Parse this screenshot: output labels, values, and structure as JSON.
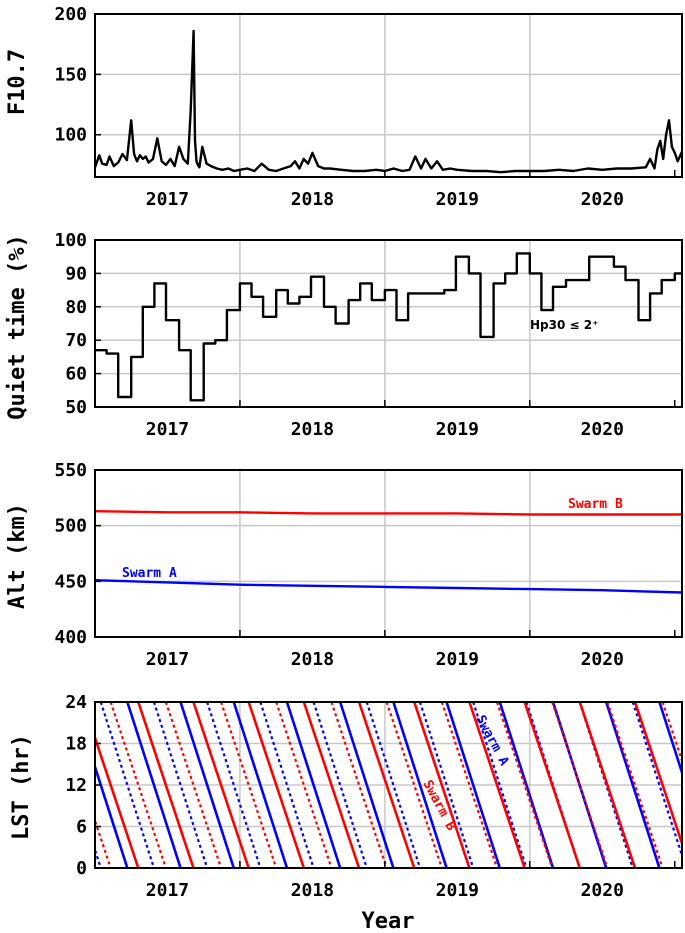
{
  "xlabel": "Year",
  "year_ticks": [
    "2017",
    "2018",
    "2019",
    "2020"
  ],
  "colors": {
    "swarm_a": "#0000ff",
    "swarm_b": "#ff0000",
    "black": "#000000",
    "grid": "#c8c8c8"
  },
  "chart_data": [
    {
      "id": "f107",
      "type": "line",
      "ylabel": "F10.7",
      "xlim": [
        2016.5,
        2020.55
      ],
      "ylim": [
        65,
        200
      ],
      "yticks": [
        100,
        150,
        200
      ],
      "grid": true,
      "series": [
        {
          "color": "#000000",
          "x": [
            2016.5,
            2016.53,
            2016.55,
            2016.58,
            2016.6,
            2016.63,
            2016.66,
            2016.69,
            2016.72,
            2016.75,
            2016.77,
            2016.79,
            2016.81,
            2016.83,
            2016.85,
            2016.87,
            2016.9,
            2016.93,
            2016.96,
            2016.99,
            2017.02,
            2017.05,
            2017.08,
            2017.11,
            2017.14,
            2017.16,
            2017.18,
            2017.19,
            2017.2,
            2017.21,
            2017.22,
            2017.24,
            2017.27,
            2017.3,
            2017.34,
            2017.38,
            2017.42,
            2017.46,
            2017.5,
            2017.55,
            2017.6,
            2017.65,
            2017.7,
            2017.75,
            2017.8,
            2017.85,
            2017.88,
            2017.91,
            2017.94,
            2017.97,
            2018.0,
            2018.04,
            2018.08,
            2018.12,
            2018.2,
            2018.28,
            2018.36,
            2018.44,
            2018.5,
            2018.56,
            2018.62,
            2018.67,
            2018.71,
            2018.75,
            2018.78,
            2018.82,
            2018.86,
            2018.9,
            2018.95,
            2019.0,
            2019.1,
            2019.2,
            2019.3,
            2019.4,
            2019.5,
            2019.6,
            2019.7,
            2019.8,
            2019.9,
            2020.0,
            2020.1,
            2020.2,
            2020.3,
            2020.33,
            2020.36,
            2020.38,
            2020.4,
            2020.42,
            2020.44,
            2020.46,
            2020.48,
            2020.5,
            2020.52,
            2020.55
          ],
          "y": [
            73,
            83,
            76,
            75,
            82,
            74,
            77,
            84,
            79,
            112,
            84,
            78,
            83,
            80,
            82,
            77,
            80,
            97,
            78,
            75,
            80,
            74,
            90,
            80,
            76,
            120,
            186,
            95,
            78,
            75,
            73,
            90,
            76,
            74,
            72,
            71,
            72,
            70,
            71,
            72,
            70,
            76,
            71,
            70,
            72,
            74,
            78,
            72,
            80,
            76,
            85,
            74,
            72,
            72,
            71,
            70,
            70,
            71,
            70,
            72,
            70,
            71,
            82,
            72,
            80,
            72,
            78,
            71,
            72,
            71,
            70,
            70,
            69,
            70,
            70,
            70,
            71,
            70,
            72,
            71,
            72,
            72,
            73,
            80,
            72,
            88,
            95,
            80,
            100,
            112,
            90,
            85,
            78,
            86
          ]
        }
      ]
    },
    {
      "id": "quiet",
      "type": "line",
      "ylabel": "Quiet time (%)",
      "annotation": "Hp30 ≤ 2⁺",
      "xlim": [
        2016.5,
        2020.55
      ],
      "ylim": [
        50,
        100
      ],
      "yticks": [
        50,
        60,
        70,
        80,
        90,
        100
      ],
      "grid": true,
      "series": [
        {
          "color": "#000000",
          "step": true,
          "x": [
            2016.5,
            2016.58,
            2016.66,
            2016.75,
            2016.83,
            2016.91,
            2016.99,
            2017.08,
            2017.16,
            2017.25,
            2017.33,
            2017.41,
            2017.5,
            2017.58,
            2017.66,
            2017.75,
            2017.83,
            2017.91,
            2017.99,
            2018.08,
            2018.16,
            2018.25,
            2018.33,
            2018.41,
            2018.5,
            2018.58,
            2018.66,
            2018.75,
            2018.83,
            2018.91,
            2018.99,
            2019.08,
            2019.16,
            2019.25,
            2019.33,
            2019.41,
            2019.5,
            2019.58,
            2019.66,
            2019.75,
            2019.83,
            2019.91,
            2019.99,
            2020.08,
            2020.16,
            2020.25,
            2020.33,
            2020.41,
            2020.5,
            2020.55
          ],
          "y": [
            67,
            66,
            53,
            65,
            80,
            87,
            76,
            67,
            52,
            69,
            70,
            79,
            87,
            83,
            77,
            85,
            81,
            83,
            89,
            80,
            75,
            82,
            87,
            82,
            85,
            76,
            84,
            84,
            84,
            85,
            95,
            90,
            71,
            87,
            90,
            96,
            90,
            79,
            86,
            88,
            88,
            95,
            95,
            92,
            88,
            76,
            84,
            88,
            90,
            90
          ]
        }
      ]
    },
    {
      "id": "alt",
      "type": "line",
      "ylabel": "Alt (km)",
      "xlim": [
        2016.5,
        2020.55
      ],
      "ylim": [
        400,
        550
      ],
      "yticks": [
        400,
        450,
        500,
        550
      ],
      "grid": true,
      "series": [
        {
          "name": "Swarm A",
          "color": "#0000ff",
          "x": [
            2016.5,
            2017.0,
            2017.5,
            2018.0,
            2018.5,
            2019.0,
            2019.5,
            2020.0,
            2020.55
          ],
          "y": [
            451,
            449,
            447,
            446,
            445,
            444,
            443,
            442,
            440
          ]
        },
        {
          "name": "Swarm B",
          "color": "#ff0000",
          "x": [
            2016.5,
            2017.0,
            2017.5,
            2018.0,
            2018.5,
            2019.0,
            2019.5,
            2020.0,
            2020.55
          ],
          "y": [
            513,
            512,
            512,
            511,
            511,
            511,
            510,
            510,
            510
          ]
        }
      ]
    },
    {
      "id": "lst",
      "type": "line",
      "ylabel": "LST (hr)",
      "xlim": [
        2016.5,
        2020.55
      ],
      "ylim": [
        0,
        24
      ],
      "yticks": [
        0,
        6,
        12,
        18,
        24
      ],
      "grid": true,
      "lst_cycles": [
        {
          "name": "Swarm A",
          "color": "#0000ff",
          "period_years": 0.3671,
          "anchor_year": 2019.66,
          "anchor_lst": 0,
          "dotted_offset_hr": 12
        },
        {
          "name": "Swarm B",
          "color": "#ff0000",
          "period_years": 0.3808,
          "anchor_year": 2019.845,
          "anchor_lst": 0,
          "dotted_offset_hr": 12
        }
      ]
    }
  ],
  "annotations": {
    "swarm_a": "Swarm A",
    "swarm_b": "Swarm B",
    "hp30": "Hp30 ≤ 2⁺"
  }
}
